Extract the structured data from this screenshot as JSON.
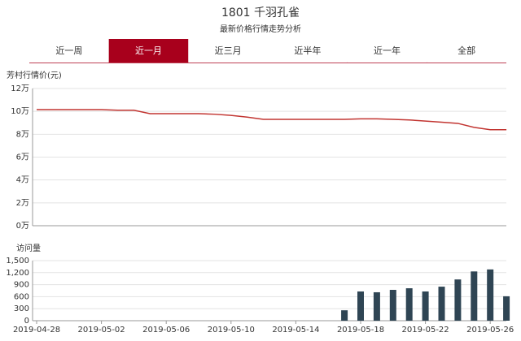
{
  "header": {
    "title": "1801 千羽孔雀",
    "subtitle": "最新价格行情走势分析"
  },
  "tabs": {
    "items": [
      "近一周",
      "近一月",
      "近三月",
      "近半年",
      "近一年",
      "全部"
    ],
    "active": 1,
    "active_color": "#a8001c"
  },
  "chart_data": [
    {
      "type": "line",
      "y_label": "芳村行情价(元)",
      "color": "#c23531",
      "grid": true,
      "ylim": [
        0,
        12
      ],
      "yticks": [
        {
          "value": 0,
          "label": "0万"
        },
        {
          "value": 2,
          "label": "2万"
        },
        {
          "value": 4,
          "label": "4万"
        },
        {
          "value": 6,
          "label": "6万"
        },
        {
          "value": 8,
          "label": "8万"
        },
        {
          "value": 10,
          "label": "10万"
        },
        {
          "value": 12,
          "label": "12万"
        }
      ],
      "values": [
        10.15,
        10.15,
        10.15,
        10.15,
        10.15,
        10.1,
        10.1,
        9.8,
        9.8,
        9.8,
        9.8,
        9.75,
        9.65,
        9.5,
        9.3,
        9.3,
        9.3,
        9.3,
        9.3,
        9.3,
        9.35,
        9.35,
        9.3,
        9.25,
        9.15,
        9.05,
        8.95,
        8.6,
        8.4,
        8.4
      ]
    },
    {
      "type": "bar",
      "y_label": "访问量",
      "color": "#2f4554",
      "grid": true,
      "categories": [
        "2019-04-28",
        null,
        null,
        null,
        "2019-05-02",
        null,
        null,
        null,
        "2019-05-06",
        null,
        null,
        null,
        "2019-05-10",
        null,
        null,
        null,
        "2019-05-14",
        null,
        null,
        null,
        "2019-05-18",
        null,
        null,
        null,
        "2019-05-22",
        null,
        null,
        null,
        "2019-05-26",
        null
      ],
      "ylim": [
        0,
        1500
      ],
      "yticks": [
        0,
        300,
        600,
        900,
        {
          "value": 1200,
          "label": "1,200"
        },
        {
          "value": 1500,
          "label": "1,500"
        }
      ],
      "values": [
        0,
        0,
        0,
        0,
        0,
        0,
        0,
        0,
        0,
        0,
        0,
        0,
        0,
        0,
        0,
        0,
        0,
        0,
        0,
        260,
        730,
        710,
        770,
        810,
        730,
        850,
        1030,
        1230,
        1280,
        610
      ]
    }
  ]
}
